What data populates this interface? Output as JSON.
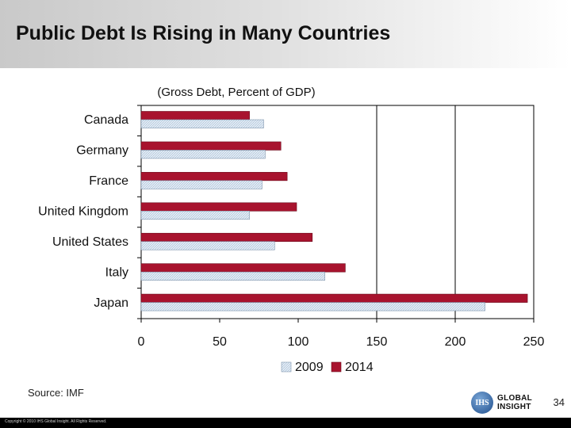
{
  "slide": {
    "title": "Public Debt Is Rising in Many Countries",
    "source": "Source: IMF",
    "page_number": "34",
    "copyright": "Copyright © 2010 IHS Global Insight. All Rights Reserved."
  },
  "logo": {
    "mark_text": "IHS",
    "line1": "GLOBAL",
    "line2": "INSIGHT"
  },
  "chart_data": {
    "type": "bar",
    "orientation": "horizontal",
    "title": "",
    "subtitle": "(Gross Debt, Percent of GDP)",
    "xlabel": "",
    "ylabel": "",
    "categories": [
      "Canada",
      "Germany",
      "France",
      "United Kingdom",
      "United States",
      "Italy",
      "Japan"
    ],
    "series": [
      {
        "name": "2009",
        "values": [
          78,
          79,
          77,
          69,
          85,
          117,
          219
        ],
        "color": "#dfe9f3",
        "pattern": "hatched"
      },
      {
        "name": "2014",
        "values": [
          69,
          89,
          93,
          99,
          109,
          130,
          246
        ],
        "color": "#a8132e"
      }
    ],
    "xlim": [
      0,
      250
    ],
    "xticks": [
      "0",
      "50",
      "100",
      "150",
      "200",
      "250"
    ],
    "grid": "vertical lines at 150 and 200",
    "legend": "bottom-center"
  }
}
